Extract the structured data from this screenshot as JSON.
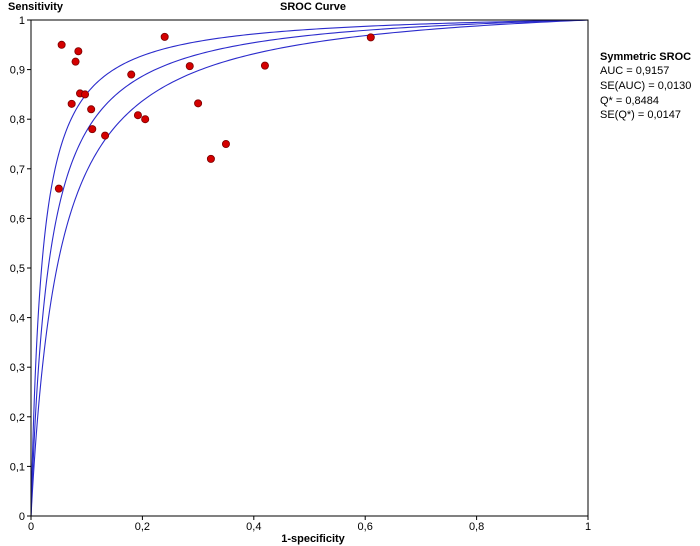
{
  "chart_data": {
    "type": "scatter",
    "title": "SROC Curve",
    "xlabel": "1-specificity",
    "ylabel": "Sensitivity",
    "xlim": [
      0,
      1
    ],
    "ylim": [
      0,
      1
    ],
    "grid": false,
    "x_ticks": [
      "0",
      "0,2",
      "0,4",
      "0,6",
      "0,8",
      "1"
    ],
    "y_ticks": [
      "0",
      "0,1",
      "0,2",
      "0,3",
      "0,4",
      "0,5",
      "0,6",
      "0,7",
      "0,8",
      "0,9",
      "1"
    ],
    "point_color": "#d40000",
    "curve_color": "#2b2bcc",
    "points": [
      {
        "x": 0.055,
        "y": 0.95
      },
      {
        "x": 0.085,
        "y": 0.937
      },
      {
        "x": 0.08,
        "y": 0.916
      },
      {
        "x": 0.24,
        "y": 0.966
      },
      {
        "x": 0.61,
        "y": 0.965
      },
      {
        "x": 0.18,
        "y": 0.89
      },
      {
        "x": 0.285,
        "y": 0.907
      },
      {
        "x": 0.42,
        "y": 0.908
      },
      {
        "x": 0.088,
        "y": 0.852
      },
      {
        "x": 0.097,
        "y": 0.85
      },
      {
        "x": 0.073,
        "y": 0.831
      },
      {
        "x": 0.108,
        "y": 0.82
      },
      {
        "x": 0.3,
        "y": 0.832
      },
      {
        "x": 0.192,
        "y": 0.808
      },
      {
        "x": 0.205,
        "y": 0.8
      },
      {
        "x": 0.11,
        "y": 0.78
      },
      {
        "x": 0.133,
        "y": 0.767
      },
      {
        "x": 0.35,
        "y": 0.75
      },
      {
        "x": 0.323,
        "y": 0.72
      },
      {
        "x": 0.05,
        "y": 0.66
      }
    ],
    "curves": [
      {
        "q_star": 0.8484
      },
      {
        "q_star": 0.8191
      },
      {
        "q_star": 0.8778
      }
    ],
    "legend_position": "right",
    "legend": {
      "heading": "Symmetric SROC",
      "lines": [
        "AUC = 0,9157",
        "SE(AUC) = 0,0130",
        "Q* = 0,8484",
        "SE(Q*) = 0,0147"
      ]
    }
  }
}
